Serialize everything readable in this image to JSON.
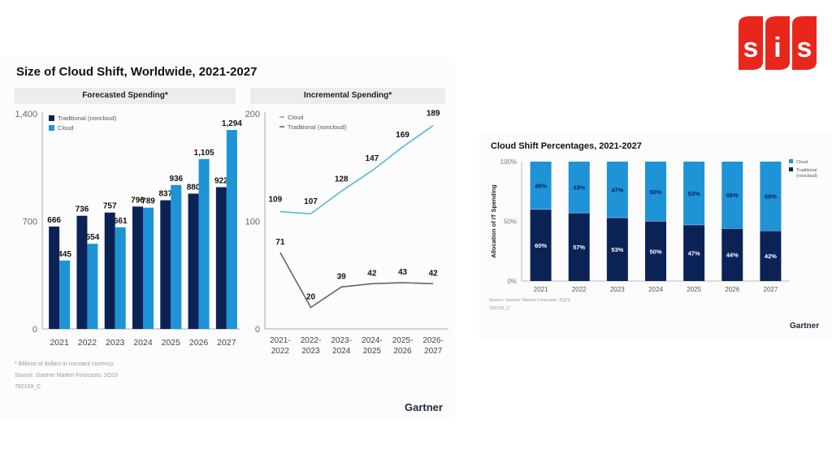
{
  "logo": {
    "text": "SiS",
    "color": "#e8261c"
  },
  "colors": {
    "traditional": "#0b2257",
    "cloud": "#1e93d6",
    "cloud_line": "#5bb8d6",
    "traditional_line": "#666666"
  },
  "chart_data": [
    {
      "type": "bar",
      "title": "Size of Cloud Shift, Worldwide, 2021-2027",
      "subtitle": "Forecasted Spending*",
      "categories": [
        "2021",
        "2022",
        "2023",
        "2024",
        "2025",
        "2026",
        "2027"
      ],
      "series": [
        {
          "name": "Traditional (noncloud)",
          "values": [
            666,
            736,
            757,
            796,
            837,
            880,
            922
          ]
        },
        {
          "name": "Cloud",
          "values": [
            445,
            554,
            661,
            789,
            936,
            1105,
            1294
          ]
        }
      ],
      "data_labels": {
        "Traditional (noncloud)": [
          "666",
          "736",
          "757",
          "796",
          "837",
          "880",
          "922"
        ],
        "Cloud": [
          "445",
          "554",
          "661",
          "789",
          "936",
          "1,105",
          "1,294"
        ]
      },
      "ylim": [
        0,
        1400
      ],
      "yticks": [
        "0",
        "700",
        "1,400"
      ],
      "ytick_values": [
        0,
        700,
        1400
      ],
      "xlabel": "",
      "ylabel": "",
      "legend": "top-left",
      "grid": false
    },
    {
      "type": "line",
      "subtitle": "Incremental Spending*",
      "categories": [
        "2021-\n2022",
        "2022-\n2023",
        "2023-\n2024",
        "2024-\n2025",
        "2025-\n2026",
        "2026-\n2027"
      ],
      "category_lines": [
        [
          "2021-",
          "2022"
        ],
        [
          "2022-",
          "2023"
        ],
        [
          "2023-",
          "2024"
        ],
        [
          "2024-",
          "2025"
        ],
        [
          "2025-",
          "2026"
        ],
        [
          "2026-",
          "2027"
        ]
      ],
      "series": [
        {
          "name": "Cloud",
          "values": [
            109,
            107,
            128,
            147,
            169,
            189
          ]
        },
        {
          "name": "Traditional (noncloud)",
          "values": [
            71,
            20,
            39,
            42,
            43,
            42
          ]
        }
      ],
      "ylim": [
        0,
        200
      ],
      "yticks": [
        "0",
        "100",
        "200"
      ],
      "ytick_values": [
        0,
        100,
        200
      ],
      "legend": "top-left",
      "grid": false
    },
    {
      "type": "bar",
      "stacked": true,
      "title": "Cloud Shift Percentages, 2021-2027",
      "categories": [
        "2021",
        "2022",
        "2023",
        "2024",
        "2025",
        "2026",
        "2027"
      ],
      "series": [
        {
          "name": "Traditional (noncloud)",
          "values": [
            60,
            57,
            53,
            50,
            47,
            44,
            42
          ]
        },
        {
          "name": "Cloud",
          "values": [
            40,
            43,
            47,
            50,
            53,
            56,
            58
          ]
        }
      ],
      "ylabel": "Allocation of IT Spending",
      "ylim": [
        0,
        100
      ],
      "yticks": [
        "0%",
        "50%",
        "100%"
      ],
      "ytick_values": [
        0,
        50,
        100
      ],
      "legend": "top-right",
      "legend_entries": [
        "Cloud",
        "Traditional (noncloud)"
      ],
      "grid": false
    }
  ],
  "left_footnotes": {
    "note": "* Billions of dollars in constant currency",
    "source": "Source: Gartner Market Forecasts, 2Q23",
    "id": "782159_C"
  },
  "right_footnotes": {
    "source": "Source: Gartner Market Forecasts, 2Q23",
    "id": "782159_C"
  },
  "brand": "Gartner"
}
